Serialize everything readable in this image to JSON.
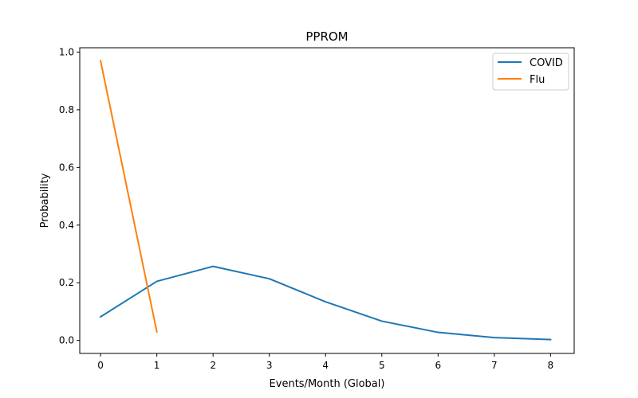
{
  "chart_data": {
    "type": "line",
    "title": "PPROM",
    "xlabel": "Events/Month (Global)",
    "ylabel": "Probability",
    "xlim": [
      -0.37,
      8.42
    ],
    "ylim": [
      -0.045,
      1.015
    ],
    "xticks": [
      0,
      1,
      2,
      3,
      4,
      5,
      6,
      7,
      8
    ],
    "yticks": [
      0.0,
      0.2,
      0.4,
      0.6,
      0.8,
      1.0
    ],
    "ytick_labels": [
      "0.0",
      "0.2",
      "0.4",
      "0.6",
      "0.8",
      "1.0"
    ],
    "grid": false,
    "legend_position": "upper right",
    "series": [
      {
        "name": "COVID",
        "color": "#1f77b4",
        "x": [
          0,
          1,
          2,
          3,
          4,
          5,
          6,
          7,
          8
        ],
        "y": [
          0.082,
          0.205,
          0.257,
          0.214,
          0.134,
          0.067,
          0.028,
          0.01,
          0.003
        ]
      },
      {
        "name": "Flu",
        "color": "#ff7f0e",
        "x": [
          0,
          1
        ],
        "y": [
          0.97,
          0.03
        ]
      }
    ]
  }
}
